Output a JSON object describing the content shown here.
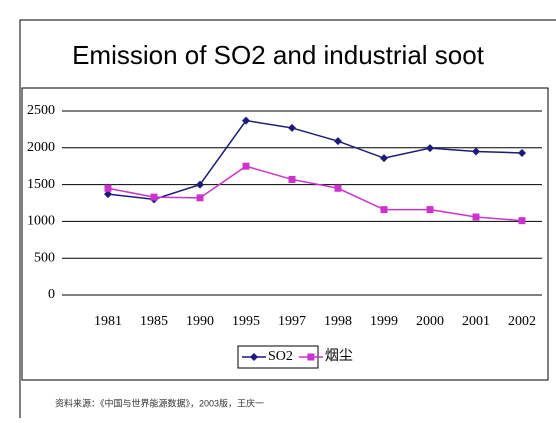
{
  "chart_data": {
    "type": "line",
    "title": "Emission of SO2 and industrial soot",
    "categories": [
      "1981",
      "1985",
      "1990",
      "1995",
      "1997",
      "1998",
      "1999",
      "2000",
      "2001",
      "2002"
    ],
    "series": [
      {
        "name": "SO2",
        "color": "#1c1c78",
        "marker": "diamond",
        "values": [
          1370,
          1300,
          1500,
          2370,
          2270,
          2090,
          1860,
          1995,
          1950,
          1930
        ]
      },
      {
        "name": "烟尘",
        "color": "#cc33cc",
        "marker": "square",
        "values": [
          1450,
          1330,
          1320,
          1750,
          1570,
          1450,
          1160,
          1160,
          1060,
          1010
        ]
      }
    ],
    "ylim": [
      0,
      2500
    ],
    "yticks": [
      0,
      500,
      1000,
      1500,
      2000,
      2500
    ],
    "grid": true,
    "source": "资料来源：《中国与世界能源数据》，2003版，王庆一"
  }
}
